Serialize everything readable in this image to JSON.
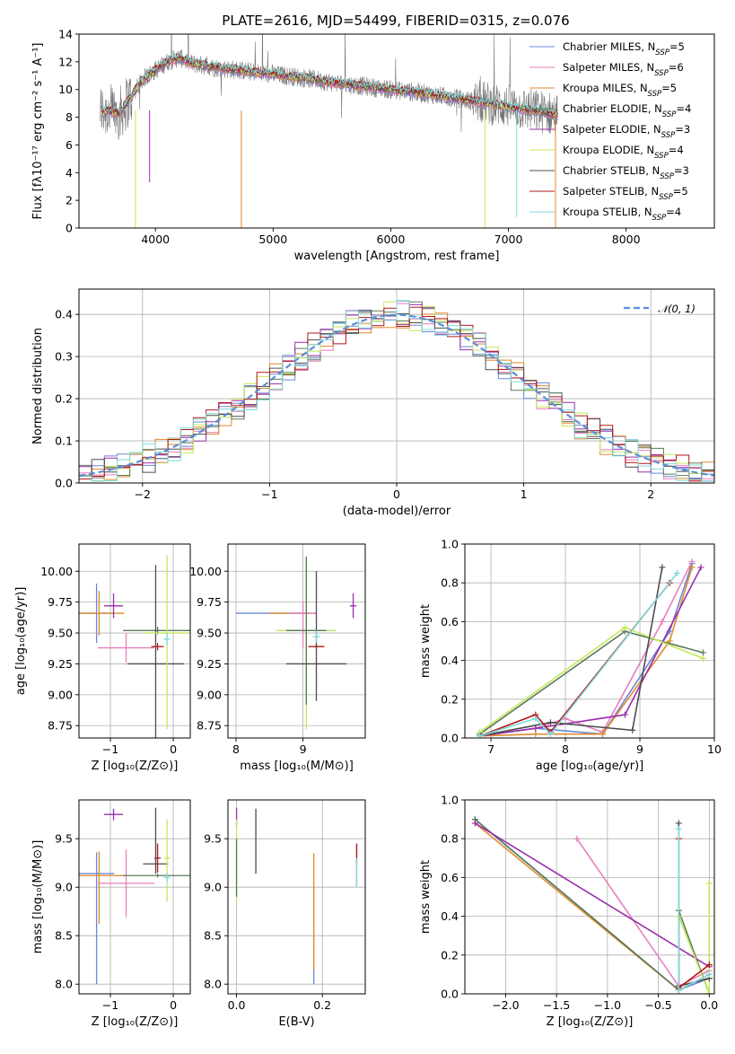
{
  "figure": {
    "title": "PLATE=2616, MJD=54499, FIBERID=0315, z=0.076"
  },
  "palette": {
    "Chabrier MILES": "#6a88d8",
    "Salpeter MILES": "#e77fbe",
    "Kroupa MILES": "#e08a2c",
    "Chabrier ELODIE": "#5a7a5a",
    "Salpeter ELODIE": "#9a2fae",
    "Kroupa ELODIE": "#c4e85a",
    "Chabrier STELIB": "#4d4d4d",
    "Salpeter STELIB": "#b01818",
    "Kroupa STELIB": "#7fdada",
    "data": "#777777",
    "normal": "#5b8fd6"
  },
  "chart_data": [
    {
      "id": "spectrum",
      "type": "line",
      "title": "PLATE=2616, MJD=54499, FIBERID=0315, z=0.076",
      "xlabel": "wavelength [Angstrom, rest frame]",
      "ylabel": "Flux [fλ10⁻¹⁷ erg cm⁻² s⁻¹ A⁻¹]",
      "xlim": [
        3350,
        8750
      ],
      "ylim": [
        0,
        14
      ],
      "xticks": [
        "4000",
        "5000",
        "6000",
        "7000",
        "8000"
      ],
      "yticks": [
        "0",
        "2",
        "4",
        "6",
        "8",
        "10",
        "12",
        "14"
      ],
      "legend_position": "top-right",
      "legend": [
        {
          "name": "Chabrier MILES",
          "nssp": "5"
        },
        {
          "name": "Salpeter MILES",
          "nssp": "6"
        },
        {
          "name": "Kroupa MILES",
          "nssp": "5"
        },
        {
          "name": "Chabrier ELODIE",
          "nssp": "4"
        },
        {
          "name": "Salpeter ELODIE",
          "nssp": "3"
        },
        {
          "name": "Kroupa ELODIE",
          "nssp": "4"
        },
        {
          "name": "Chabrier STELIB",
          "nssp": "3"
        },
        {
          "name": "Salpeter STELIB",
          "nssp": "5"
        },
        {
          "name": "Kroupa STELIB",
          "nssp": "4"
        }
      ],
      "model_continuum": {
        "x": [
          3550,
          3700,
          3800,
          3900,
          4000,
          4100,
          4200,
          4300,
          4500,
          4700,
          4900,
          5100,
          5300,
          5500,
          5700,
          6000,
          6300,
          6600,
          6900,
          7200,
          7400
        ],
        "y": [
          8.5,
          8.3,
          9.6,
          10.8,
          11.4,
          12.0,
          12.3,
          11.9,
          11.6,
          11.4,
          11.2,
          11.0,
          10.8,
          10.5,
          10.3,
          10.0,
          9.7,
          9.3,
          8.9,
          8.5,
          8.2
        ]
      },
      "grid": false
    },
    {
      "id": "residual-histogram",
      "type": "line",
      "xlabel": "(data-model)/error",
      "ylabel": "Normed distribution",
      "xlim": [
        -2.5,
        2.5
      ],
      "ylim": [
        0,
        0.46
      ],
      "xticks": [
        "−2",
        "−1",
        "0",
        "1",
        "2"
      ],
      "yticks": [
        "0.0",
        "0.1",
        "0.2",
        "0.3",
        "0.4"
      ],
      "legend_position": "top-right",
      "legend": [
        {
          "name": "𝒩(0, 1)"
        }
      ],
      "bin_width": 0.1,
      "grid": true
    },
    {
      "id": "age-vs-Z",
      "type": "scatter",
      "xlabel": "Z [log₁₀(Z/Z⊙)]",
      "ylabel": "age  [log₁₀(age/yr)]",
      "xlim": [
        -1.5,
        0.27
      ],
      "ylim": [
        8.65,
        10.22
      ],
      "xticks": [
        "−1",
        "0"
      ],
      "yticks": [
        "8.75",
        "9.00",
        "9.25",
        "9.50",
        "9.75",
        "10.00"
      ],
      "grid": true,
      "points": [
        {
          "series": "Chabrier MILES",
          "x": -1.22,
          "y": 9.66,
          "xerr": 0.28,
          "yerr": [
            0.24,
            0.24
          ]
        },
        {
          "series": "Kroupa MILES",
          "x": -1.18,
          "y": 9.66,
          "xerr": 0.4,
          "yerr": [
            0.18,
            0.18
          ]
        },
        {
          "series": "Salpeter MILES",
          "x": -0.75,
          "y": 9.38,
          "xerr": 0.45,
          "yerr": [
            0.12,
            0.12
          ]
        },
        {
          "series": "Salpeter ELODIE",
          "x": -0.95,
          "y": 9.72,
          "xerr": 0.15,
          "yerr": [
            0.1,
            0.1
          ]
        },
        {
          "series": "Chabrier ELODIE",
          "x": -0.25,
          "y": 9.52,
          "xerr": 0.55,
          "yerr": [
            0.03,
            0.03
          ]
        },
        {
          "series": "Chabrier STELIB",
          "x": -0.28,
          "y": 9.25,
          "xerr": 0.45,
          "yerr": [
            0.8,
            0.8
          ]
        },
        {
          "series": "Salpeter STELIB",
          "x": -0.25,
          "y": 9.39,
          "xerr": 0.1,
          "yerr": [
            0.03,
            0.03
          ]
        },
        {
          "series": "Kroupa ELODIE",
          "x": -0.1,
          "y": 9.5,
          "xerr": 0.35,
          "yerr": [
            0.78,
            0.63
          ]
        },
        {
          "series": "Kroupa STELIB",
          "x": -0.1,
          "y": 9.45,
          "xerr": 0.05,
          "yerr": [
            0.05,
            0.05
          ]
        }
      ]
    },
    {
      "id": "age-vs-mass",
      "type": "scatter",
      "xlabel": "mass [log₁₀(M/M⊙)]",
      "xlim": [
        7.88,
        9.93
      ],
      "ylim": [
        8.65,
        10.22
      ],
      "xticks": [
        "8",
        "9"
      ],
      "yticks": [
        "8.75",
        "9.00",
        "9.25",
        "9.50",
        "9.75",
        "10.00"
      ],
      "grid": true,
      "points": [
        {
          "series": "Chabrier MILES",
          "x": 8.55,
          "y": 9.66,
          "xerr": 0.55,
          "yerr": [
            0,
            0
          ]
        },
        {
          "series": "Kroupa MILES",
          "x": 8.85,
          "y": 9.66,
          "xerr": 0.35,
          "yerr": [
            0,
            0
          ]
        },
        {
          "series": "Salpeter MILES",
          "x": 9.0,
          "y": 9.66,
          "xerr": 0.2,
          "yerr": [
            0.28,
            0.1
          ]
        },
        {
          "series": "Kroupa ELODIE",
          "x": 9.05,
          "y": 9.52,
          "xerr": 0.45,
          "yerr": [
            0.8,
            0.6
          ]
        },
        {
          "series": "Chabrier ELODIE",
          "x": 9.05,
          "y": 9.52,
          "xerr": 0.3,
          "yerr": [
            0.6,
            0.6
          ]
        },
        {
          "series": "Salpeter STELIB",
          "x": 9.2,
          "y": 9.39,
          "xerr": 0.12,
          "yerr": [
            0.02,
            0.02
          ]
        },
        {
          "series": "Chabrier STELIB",
          "x": 9.2,
          "y": 9.25,
          "xerr": 0.45,
          "yerr": [
            0.3,
            0.75
          ]
        },
        {
          "series": "Kroupa STELIB",
          "x": 9.2,
          "y": 9.47,
          "xerr": 0.05,
          "yerr": [
            0.05,
            0.05
          ]
        },
        {
          "series": "Salpeter ELODIE",
          "x": 9.75,
          "y": 9.72,
          "xerr": 0.05,
          "yerr": [
            0.1,
            0.1
          ]
        }
      ]
    },
    {
      "id": "massweight-vs-age",
      "type": "line",
      "xlabel": "age  [log₁₀(age/yr)]",
      "ylabel": "mass weight",
      "xlim": [
        6.65,
        10
      ],
      "ylim": [
        0,
        1
      ],
      "xticks": [
        "7",
        "8",
        "9",
        "10"
      ],
      "yticks": [
        "0.0",
        "0.2",
        "0.4",
        "0.6",
        "0.8",
        "1.0"
      ],
      "grid": true,
      "series": [
        {
          "name": "Chabrier MILES",
          "x": [
            6.85,
            7.6,
            8.5,
            9.4,
            9.7
          ],
          "y": [
            0.01,
            0.05,
            0.02,
            0.55,
            0.9
          ]
        },
        {
          "name": "Salpeter MILES",
          "x": [
            6.85,
            7.6,
            8.0,
            8.5,
            9.3,
            9.7
          ],
          "y": [
            0.01,
            0.05,
            0.1,
            0.03,
            0.6,
            0.91
          ]
        },
        {
          "name": "Kroupa MILES",
          "x": [
            6.85,
            7.6,
            8.5,
            9.4,
            9.7
          ],
          "y": [
            0.01,
            0.02,
            0.02,
            0.5,
            0.88
          ]
        },
        {
          "name": "Chabrier ELODIE",
          "x": [
            6.85,
            8.8,
            9.85
          ],
          "y": [
            0.02,
            0.55,
            0.44
          ]
        },
        {
          "name": "Salpeter ELODIE",
          "x": [
            6.85,
            7.6,
            8.8,
            9.82
          ],
          "y": [
            0.01,
            0.05,
            0.12,
            0.88
          ]
        },
        {
          "name": "Kroupa ELODIE",
          "x": [
            6.85,
            8.8,
            9.85
          ],
          "y": [
            0.03,
            0.57,
            0.41
          ]
        },
        {
          "name": "Chabrier STELIB",
          "x": [
            6.85,
            7.8,
            8.9,
            9.3
          ],
          "y": [
            0.01,
            0.08,
            0.04,
            0.88
          ]
        },
        {
          "name": "Salpeter STELIB",
          "x": [
            6.85,
            7.6,
            7.8,
            9.4
          ],
          "y": [
            0.01,
            0.12,
            0.03,
            0.8
          ]
        },
        {
          "name": "Kroupa STELIB",
          "x": [
            6.85,
            7.6,
            7.8,
            9.5
          ],
          "y": [
            0.01,
            0.1,
            0.02,
            0.85
          ]
        }
      ]
    },
    {
      "id": "mass-vs-Z",
      "type": "scatter",
      "xlabel": "Z [log₁₀(Z/Z⊙)]",
      "ylabel": "mass [log₁₀(M/M⊙)]",
      "xlim": [
        -1.5,
        0.27
      ],
      "ylim": [
        7.9,
        9.9
      ],
      "xticks": [
        "−1",
        "0"
      ],
      "yticks": [
        "8.0",
        "8.5",
        "9.0",
        "9.5"
      ],
      "grid": true,
      "points": [
        {
          "series": "Chabrier MILES",
          "x": -1.22,
          "y": 9.14,
          "xerr": 0.28,
          "yerr": [
            1.14,
            0.22
          ]
        },
        {
          "series": "Kroupa MILES",
          "x": -1.18,
          "y": 9.12,
          "xerr": 0.4,
          "yerr": [
            0.5,
            0.25
          ]
        },
        {
          "series": "Salpeter MILES",
          "x": -0.75,
          "y": 9.04,
          "xerr": 0.45,
          "yerr": [
            0.35,
            0.35
          ]
        },
        {
          "series": "Salpeter ELODIE",
          "x": -0.95,
          "y": 9.75,
          "xerr": 0.15,
          "yerr": [
            0.06,
            0.06
          ]
        },
        {
          "series": "Chabrier ELODIE",
          "x": -0.25,
          "y": 9.12,
          "xerr": 0.55,
          "yerr": [
            0.02,
            0.02
          ]
        },
        {
          "series": "Chabrier STELIB",
          "x": -0.28,
          "y": 9.24,
          "xerr": 0.2,
          "yerr": [
            0.1,
            0.58
          ]
        },
        {
          "series": "Salpeter STELIB",
          "x": -0.25,
          "y": 9.3,
          "xerr": 0.05,
          "yerr": [
            0.15,
            0.15
          ]
        },
        {
          "series": "Kroupa ELODIE",
          "x": -0.1,
          "y": 9.3,
          "xerr": 0.05,
          "yerr": [
            0.45,
            0.4
          ]
        },
        {
          "series": "Kroupa STELIB",
          "x": -0.1,
          "y": 9.1,
          "xerr": 0.05,
          "yerr": [
            0.05,
            0.05
          ]
        }
      ]
    },
    {
      "id": "mass-vs-EBV",
      "type": "scatter",
      "xlabel": "E(B-V)",
      "xlim": [
        -0.02,
        0.3
      ],
      "ylim": [
        7.9,
        9.9
      ],
      "xticks": [
        "0.0",
        "0.2"
      ],
      "yticks": [
        "8.0",
        "8.5",
        "9.0",
        "9.5"
      ],
      "grid": true,
      "points": [
        {
          "series": "Salpeter ELODIE",
          "x": 0.0,
          "y": 9.72,
          "xerr": 0,
          "yerr": [
            0.1,
            0.1
          ]
        },
        {
          "series": "Kroupa ELODIE",
          "x": 0.0,
          "y": 9.3,
          "xerr": 0,
          "yerr": [
            0.45,
            0.4
          ]
        },
        {
          "series": "Chabrier ELODIE",
          "x": 0.0,
          "y": 9.2,
          "xerr": 0,
          "yerr": [
            0.3,
            0.3
          ]
        },
        {
          "series": "Chabrier STELIB",
          "x": 0.045,
          "y": 9.46,
          "xerr": 0,
          "yerr": [
            0.32,
            0.35
          ]
        },
        {
          "series": "Chabrier MILES",
          "x": 0.18,
          "y": 8.5,
          "xerr": 0,
          "yerr": [
            0.5,
            0.5
          ]
        },
        {
          "series": "Kroupa MILES",
          "x": 0.18,
          "y": 8.75,
          "xerr": 0,
          "yerr": [
            0.6,
            0.6
          ]
        },
        {
          "series": "Salpeter MILES",
          "x": 0.28,
          "y": 9.3,
          "xerr": 0,
          "yerr": [
            0.3,
            0.15
          ]
        },
        {
          "series": "Salpeter STELIB",
          "x": 0.28,
          "y": 9.35,
          "xerr": 0,
          "yerr": [
            0.1,
            0.1
          ]
        },
        {
          "series": "Kroupa STELIB",
          "x": 0.28,
          "y": 9.15,
          "xerr": 0,
          "yerr": [
            0.15,
            0.15
          ]
        }
      ]
    },
    {
      "id": "massweight-vs-Z",
      "type": "line",
      "xlabel": "Z [log₁₀(Z/Z⊙)]",
      "ylabel": "mass weight",
      "xlim": [
        -2.4,
        0.05
      ],
      "ylim": [
        0,
        1
      ],
      "xticks": [
        "−2.0",
        "−1.5",
        "−1.0",
        "−0.5",
        "0.0"
      ],
      "yticks": [
        "0.0",
        "0.2",
        "0.4",
        "0.6",
        "0.8",
        "1.0"
      ],
      "grid": true,
      "series": [
        {
          "name": "Chabrier MILES",
          "x": [
            -2.3,
            -0.3,
            0.0
          ],
          "y": [
            0.9,
            0.02,
            0.08
          ]
        },
        {
          "name": "Salpeter MILES",
          "x": [
            -1.3,
            -0.3,
            0.0
          ],
          "y": [
            0.8,
            0.04,
            0.12
          ]
        },
        {
          "name": "Kroupa MILES",
          "x": [
            -2.3,
            -0.3,
            0.0
          ],
          "y": [
            0.88,
            0.02,
            0.1
          ]
        },
        {
          "name": "Chabrier ELODIE",
          "x": [
            -2.3,
            -0.3,
            -0.3,
            0.0
          ],
          "y": [
            0.9,
            0.02,
            0.43,
            0.0
          ]
        },
        {
          "name": "Salpeter ELODIE",
          "x": [
            -2.3,
            0.0
          ],
          "y": [
            0.88,
            0.14
          ]
        },
        {
          "name": "Kroupa ELODIE",
          "x": [
            -0.3,
            0.0,
            0.0
          ],
          "y": [
            0.4,
            0.0,
            0.57
          ]
        },
        {
          "name": "Chabrier STELIB",
          "x": [
            -0.3,
            -0.3,
            0.0
          ],
          "y": [
            0.88,
            0.04,
            0.08
          ]
        },
        {
          "name": "Salpeter STELIB",
          "x": [
            -0.3,
            -0.3,
            0.0
          ],
          "y": [
            0.8,
            0.03,
            0.15
          ]
        },
        {
          "name": "Kroupa STELIB",
          "x": [
            -0.3,
            -0.3,
            0.0
          ],
          "y": [
            0.85,
            0.02,
            0.1
          ]
        }
      ]
    }
  ]
}
